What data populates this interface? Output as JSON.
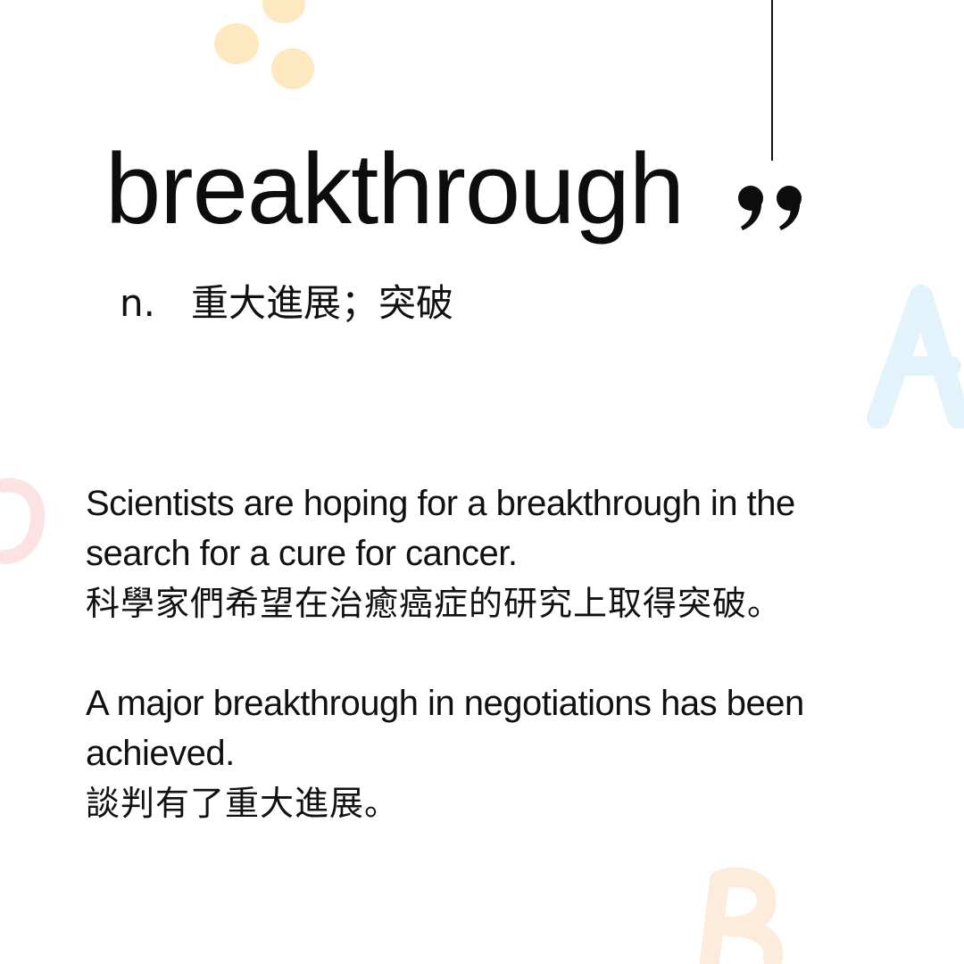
{
  "card": {
    "word": "breakthrough",
    "part_of_speech": "n.",
    "definition": "重大進展；突破"
  },
  "examples": [
    {
      "en": "Scientists are hoping for a breakthrough in the search for a cure for cancer.",
      "zh": "科學家們希望在治癒癌症的研究上取得突破。"
    },
    {
      "en": "A major breakthrough in negotiations has been achieved.",
      "zh": "談判有了重大進展。"
    }
  ],
  "decorations": {
    "icons": [
      "closing-quote-icon",
      "letter-a-watermark",
      "letter-b-watermark",
      "letter-c-watermark",
      "dots-icon"
    ],
    "letter_a": "A",
    "letter_b": "B",
    "letter_c": "C",
    "colors": {
      "dots": "#fde8bf",
      "letter_a": "#e3f3fb",
      "letter_b": "#fdebdc",
      "letter_c": "#fde2e4",
      "text": "#111111"
    }
  }
}
